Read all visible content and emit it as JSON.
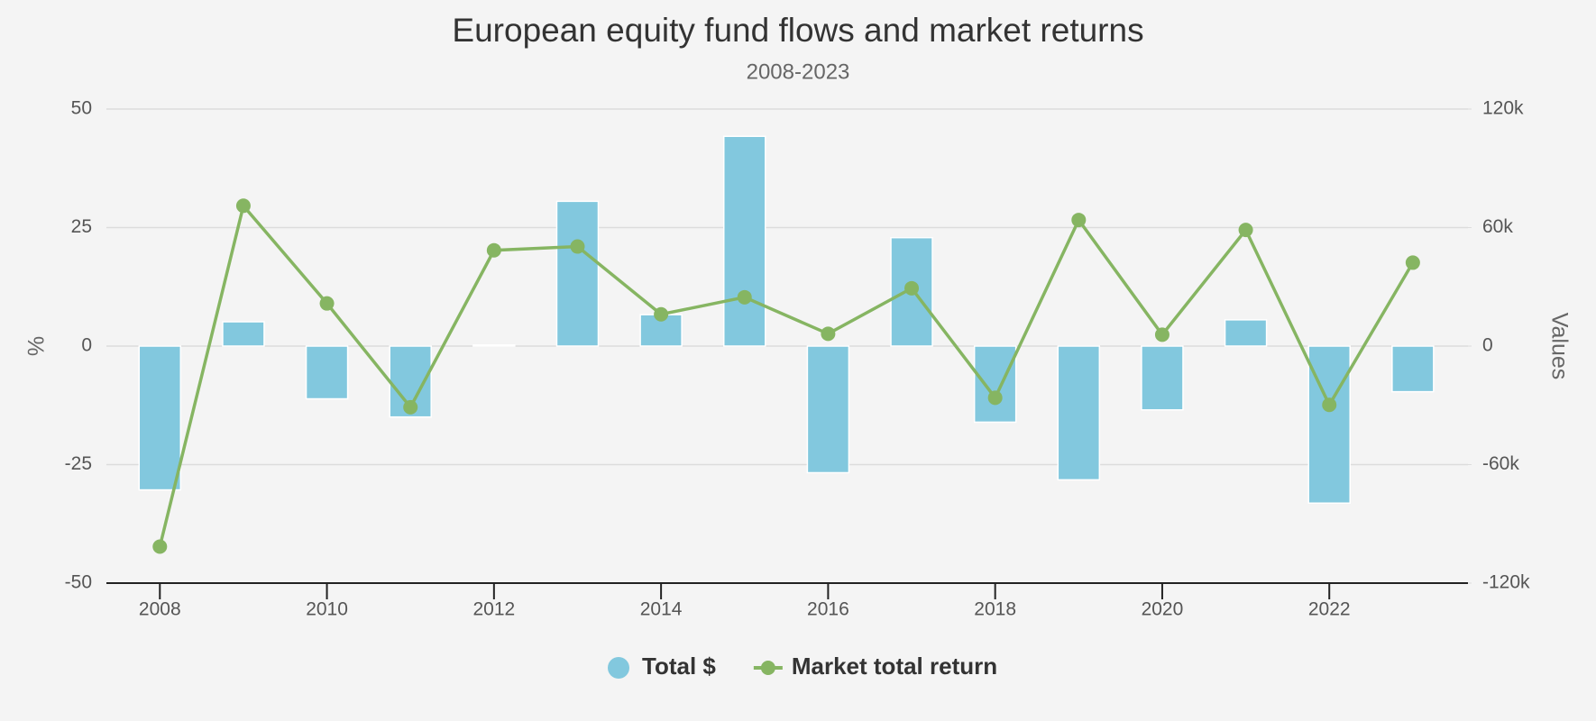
{
  "chart_data": {
    "type": "bar",
    "title": "European equity fund flows and market returns",
    "subtitle": "2008-2023",
    "y_label": "%",
    "y2_label": "Values",
    "x": [
      2008,
      2009,
      2010,
      2011,
      2012,
      2013,
      2014,
      2015,
      2016,
      2017,
      2018,
      2019,
      2020,
      2021,
      2022,
      2023
    ],
    "xlim": [
      2007.36,
      2023.66
    ],
    "xticks": [
      2008,
      2010,
      2012,
      2014,
      2016,
      2018,
      2020,
      2022
    ],
    "ylim": [
      -50,
      50
    ],
    "yticks": [
      -50,
      -25,
      0,
      25,
      50
    ],
    "y2lim": [
      -120000,
      120000
    ],
    "y2ticks": [
      {
        "value": -120000,
        "label": "-120k"
      },
      {
        "value": -60000,
        "label": "-60k"
      },
      {
        "value": 0,
        "label": "0"
      },
      {
        "value": 60000,
        "label": "60k"
      },
      {
        "value": 120000,
        "label": "120k"
      }
    ],
    "grid": true,
    "legend": "bottom",
    "series": [
      {
        "name": "Total $",
        "type": "bar",
        "axis": "y2",
        "color": "#82c8de",
        "values": [
          -72800,
          12300,
          -26700,
          -35900,
          500,
          73300,
          15900,
          106200,
          -64100,
          54900,
          -38500,
          -67700,
          -32300,
          13300,
          -79500,
          -23100
        ]
      },
      {
        "name": "Market total return",
        "type": "line",
        "axis": "y",
        "color": "#86b562",
        "values": [
          -42.3,
          29.6,
          9.0,
          -12.9,
          20.2,
          21.0,
          6.7,
          10.3,
          2.6,
          12.2,
          -10.9,
          26.6,
          2.4,
          24.5,
          -12.4,
          17.6
        ]
      }
    ]
  }
}
